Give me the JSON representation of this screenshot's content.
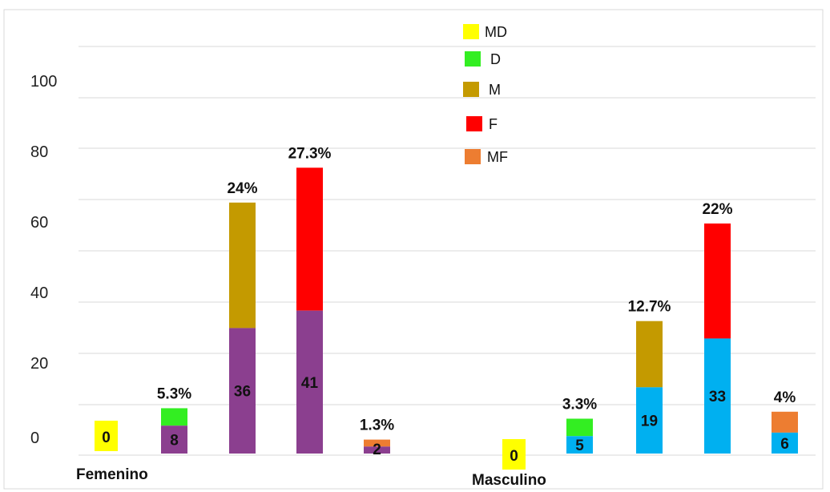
{
  "chart_data": {
    "type": "bar",
    "ylim": [
      0,
      100
    ],
    "yticks": [
      "0",
      "20",
      "40",
      "60",
      "80",
      "100"
    ],
    "grid": true,
    "legend_position": "top-center",
    "legend": [
      {
        "label": "MD",
        "color": "#ffff00"
      },
      {
        "label": "D",
        "color": "#33ee22"
      },
      {
        "label": "M",
        "color": "#c49a00"
      },
      {
        "label": "F",
        "color": "#ff0000"
      },
      {
        "label": "MF",
        "color": "#ed7d31"
      }
    ],
    "groups": [
      {
        "label": "Femenino",
        "base_color": "#8b3f8f",
        "bars": [
          {
            "category": "MD",
            "count": 0,
            "count_label": "0",
            "total": 0,
            "pct_label": ""
          },
          {
            "category": "D",
            "count": 8,
            "count_label": "8",
            "total": 13,
            "pct_label": "5.3%"
          },
          {
            "category": "M",
            "count": 36,
            "count_label": "36",
            "total": 72,
            "pct_label": "24%"
          },
          {
            "category": "F",
            "count": 41,
            "count_label": "41",
            "total": 82,
            "pct_label": "27.3%"
          },
          {
            "category": "MF",
            "count": 2,
            "count_label": "2",
            "total": 4,
            "pct_label": "1.3%"
          }
        ]
      },
      {
        "label": "Masculino",
        "base_color": "#00b0f0",
        "bars": [
          {
            "category": "MD",
            "count": 0,
            "count_label": "0",
            "total": 0,
            "pct_label": ""
          },
          {
            "category": "D",
            "count": 5,
            "count_label": "5",
            "total": 10,
            "pct_label": "3.3%"
          },
          {
            "category": "M",
            "count": 19,
            "count_label": "19",
            "total": 38,
            "pct_label": "12.7%"
          },
          {
            "category": "F",
            "count": 33,
            "count_label": "33",
            "total": 66,
            "pct_label": "22%"
          },
          {
            "category": "MF",
            "count": 6,
            "count_label": "6",
            "total": 12,
            "pct_label": "4%"
          }
        ]
      }
    ]
  }
}
